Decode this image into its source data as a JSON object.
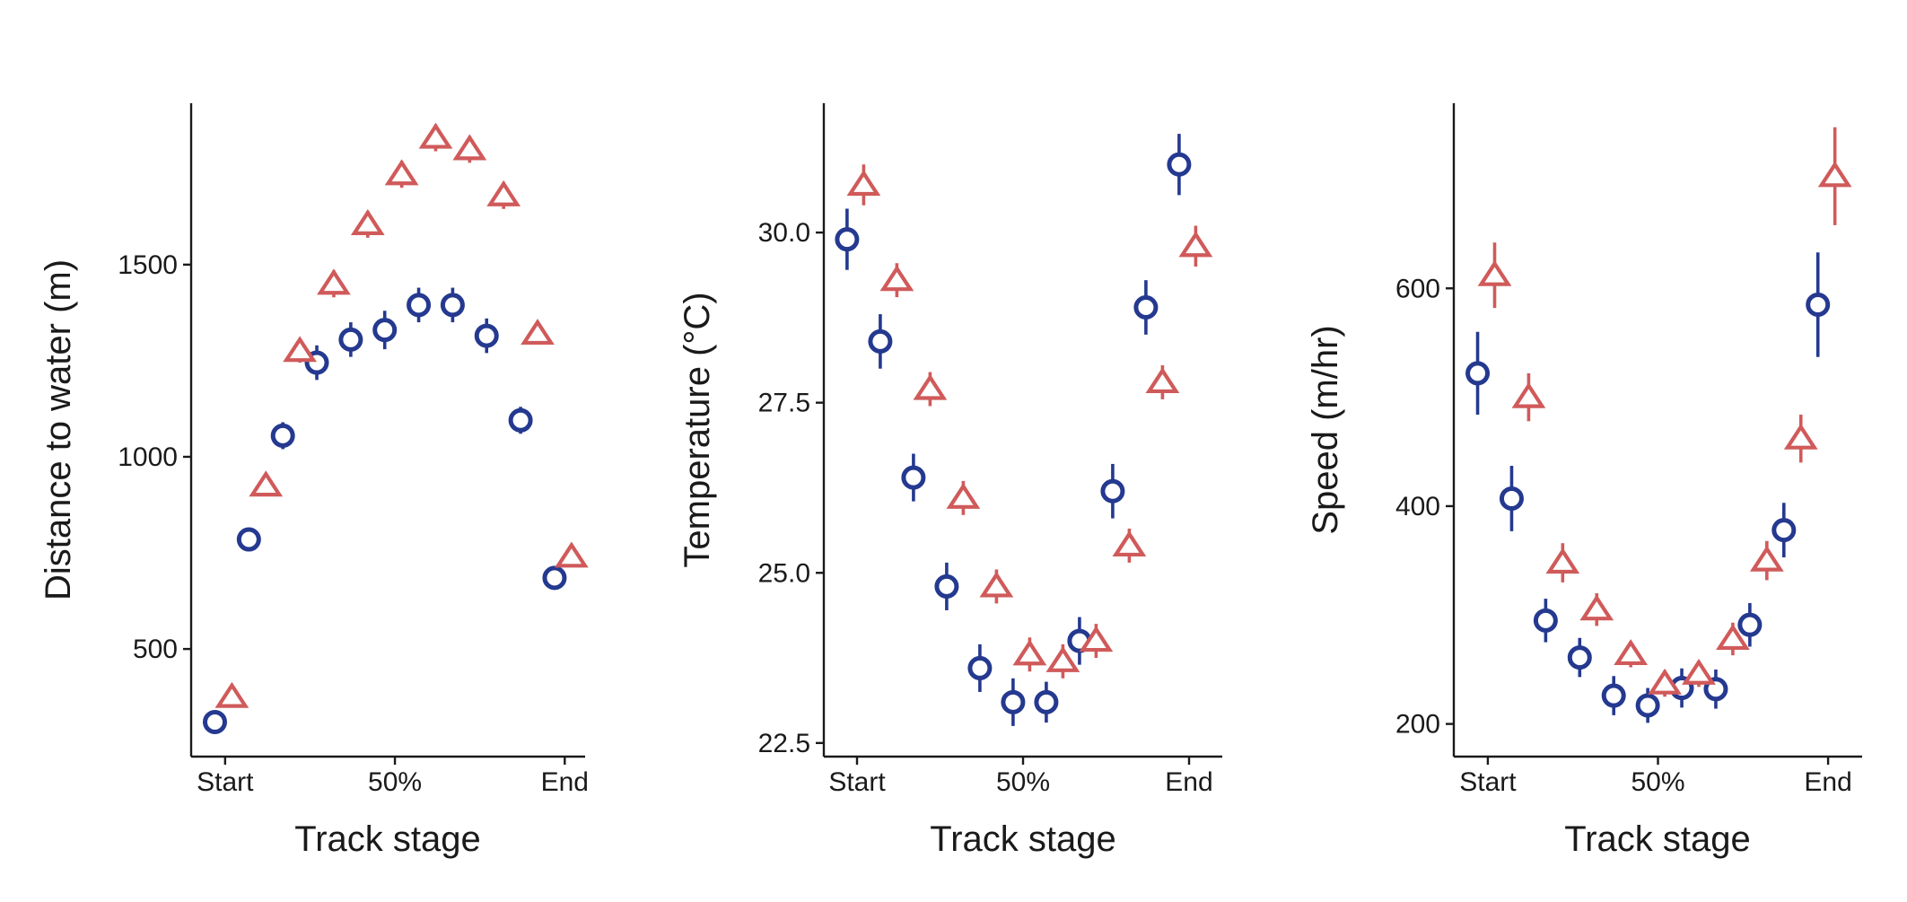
{
  "colors": {
    "series_a": "#24398f",
    "series_b": "#d05a5a"
  },
  "chart_data": [
    {
      "type": "scatter",
      "xlabel": "Track stage",
      "ylabel": "Distance to water (m)",
      "x_tick_labels": [
        "Start",
        "50%",
        "End"
      ],
      "x_tick_values": [
        0,
        50,
        100
      ],
      "y_ticks": [
        500,
        1000,
        1500
      ],
      "ylim": [
        220,
        1920
      ],
      "xlim": [
        -10,
        106
      ],
      "error_bars": true,
      "series": [
        {
          "marker": "circle",
          "color": "#24398f",
          "x": [
            -3,
            7,
            17,
            27,
            37,
            47,
            57,
            67,
            77,
            87,
            97
          ],
          "y": [
            310,
            785,
            1055,
            1245,
            1305,
            1330,
            1395,
            1395,
            1315,
            1095,
            685
          ],
          "err": [
            10,
            25,
            35,
            45,
            45,
            50,
            45,
            45,
            45,
            35,
            30
          ]
        },
        {
          "marker": "triangle",
          "color": "#d05a5a",
          "x": [
            2,
            12,
            22,
            32,
            42,
            52,
            62,
            72,
            82,
            92,
            102
          ],
          "y": [
            375,
            925,
            1275,
            1450,
            1605,
            1735,
            1830,
            1800,
            1680,
            1320,
            740
          ],
          "err": [
            15,
            25,
            30,
            35,
            35,
            35,
            35,
            35,
            35,
            25,
            25
          ]
        }
      ]
    },
    {
      "type": "scatter",
      "xlabel": "Track stage",
      "ylabel": "Temperature (°C)",
      "x_tick_labels": [
        "Start",
        "50%",
        "End"
      ],
      "x_tick_values": [
        0,
        50,
        100
      ],
      "y_ticks": [
        22.5,
        25.0,
        27.5,
        30.0
      ],
      "ylim": [
        22.3,
        31.9
      ],
      "xlim": [
        -10,
        110
      ],
      "error_bars": true,
      "series": [
        {
          "marker": "circle",
          "color": "#24398f",
          "x": [
            -3,
            7,
            17,
            27,
            37,
            47,
            57,
            67,
            77,
            87,
            97
          ],
          "y": [
            29.9,
            28.4,
            26.4,
            24.8,
            23.6,
            23.1,
            23.1,
            24.0,
            26.2,
            28.9,
            31.0
          ],
          "err": [
            0.45,
            0.4,
            0.35,
            0.35,
            0.35,
            0.35,
            0.3,
            0.35,
            0.4,
            0.4,
            0.45
          ]
        },
        {
          "marker": "triangle",
          "color": "#d05a5a",
          "x": [
            2,
            12,
            22,
            32,
            42,
            52,
            62,
            72,
            82,
            92,
            102
          ],
          "y": [
            30.7,
            29.3,
            27.7,
            26.1,
            24.8,
            23.8,
            23.7,
            24.0,
            25.4,
            27.8,
            29.8
          ],
          "err": [
            0.3,
            0.25,
            0.25,
            0.25,
            0.25,
            0.25,
            0.25,
            0.25,
            0.25,
            0.25,
            0.3
          ]
        }
      ]
    },
    {
      "type": "scatter",
      "xlabel": "Track stage",
      "ylabel": "Speed (m/hr)",
      "x_tick_labels": [
        "Start",
        "50%",
        "End"
      ],
      "x_tick_values": [
        0,
        50,
        100
      ],
      "y_ticks": [
        200,
        400,
        600
      ],
      "ylim": [
        170,
        770
      ],
      "xlim": [
        -10,
        110
      ],
      "error_bars": true,
      "series": [
        {
          "marker": "circle",
          "color": "#24398f",
          "x": [
            -3,
            7,
            17,
            27,
            37,
            47,
            57,
            67,
            77,
            87,
            97
          ],
          "y": [
            522,
            407,
            295,
            261,
            226,
            217,
            233,
            232,
            291,
            378,
            585
          ],
          "err": [
            38,
            30,
            20,
            18,
            18,
            16,
            18,
            18,
            20,
            25,
            48
          ]
        },
        {
          "marker": "triangle",
          "color": "#d05a5a",
          "x": [
            2,
            12,
            22,
            32,
            42,
            52,
            62,
            72,
            82,
            92,
            102
          ],
          "y": [
            612,
            500,
            348,
            305,
            264,
            237,
            246,
            278,
            350,
            462,
            703
          ],
          "err": [
            30,
            22,
            18,
            15,
            12,
            12,
            12,
            15,
            18,
            22,
            45
          ]
        }
      ]
    }
  ]
}
